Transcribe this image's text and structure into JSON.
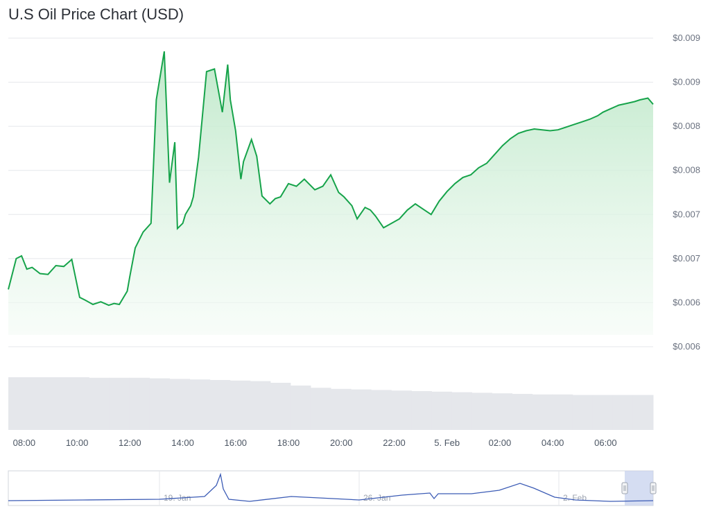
{
  "header": {
    "title": "U.S Oil Price Chart (USD)"
  },
  "colors": {
    "line": "#16a34a",
    "area_top": "#bde8c8",
    "area_bottom": "#f3fbf5",
    "volume": "#e5e7eb",
    "navigator": "#3b5bb5",
    "navigator_mask": "#c7d2ee",
    "grid": "#e5e7eb"
  },
  "chart_data": {
    "type": "area",
    "title": "U.S Oil Price Chart (USD)",
    "y_tick_labels": [
      "$0.009",
      "$0.009",
      "$0.008",
      "$0.008",
      "$0.007",
      "$0.007",
      "$0.006",
      "$0.006"
    ],
    "x_tick_labels": [
      "08:00",
      "10:00",
      "12:00",
      "14:00",
      "16:00",
      "18:00",
      "20:00",
      "22:00",
      "5. Feb",
      "02:00",
      "04:00",
      "06:00"
    ],
    "ylim": [
      0.006,
      0.0095
    ],
    "series": [
      {
        "x_hours": [
          7.4,
          7.7,
          7.9,
          8.1,
          8.3,
          8.6,
          8.9,
          9.2,
          9.5,
          9.8,
          10.1,
          10.3,
          10.6,
          10.9,
          11.2,
          11.4,
          11.6,
          11.9,
          12.0,
          12.2,
          12.5,
          12.8,
          13.0,
          13.3,
          13.5,
          13.7,
          13.8,
          14.0,
          14.1,
          14.2,
          14.3,
          14.4,
          14.6,
          14.9,
          15.2,
          15.5,
          15.7,
          15.8,
          16.0,
          16.2,
          16.3,
          16.6,
          16.8,
          17.0,
          17.3,
          17.5,
          17.7,
          18.0,
          18.3,
          18.6,
          19.0,
          19.3,
          19.6,
          19.9,
          20.1,
          20.4,
          20.6,
          20.9,
          21.1,
          21.3,
          21.6,
          21.9,
          22.2,
          22.5,
          22.8,
          23.1,
          23.4,
          23.7,
          24.0,
          24.3,
          24.6,
          24.9,
          25.2,
          25.5,
          25.8,
          26.1,
          26.4,
          26.7,
          27.0,
          27.3,
          27.6,
          27.9,
          28.2,
          28.5,
          28.8,
          29.1,
          29.4,
          29.7,
          29.9,
          30.2,
          30.5,
          30.8,
          31.1,
          31.3,
          31.6,
          31.8
        ],
        "values": [
          0.00665,
          0.007,
          0.00703,
          0.00688,
          0.0069,
          0.00683,
          0.00682,
          0.00692,
          0.00691,
          0.00699,
          0.00656,
          0.00653,
          0.00648,
          0.00651,
          0.00647,
          0.00649,
          0.00648,
          0.00663,
          0.0068,
          0.00712,
          0.0073,
          0.0074,
          0.0088,
          0.00935,
          0.00786,
          0.00832,
          0.00734,
          0.0074,
          0.0075,
          0.00755,
          0.0076,
          0.0077,
          0.00815,
          0.00912,
          0.00915,
          0.00866,
          0.0092,
          0.0088,
          0.00845,
          0.0079,
          0.0081,
          0.00835,
          0.00816,
          0.00771,
          0.00762,
          0.00768,
          0.0077,
          0.00785,
          0.00782,
          0.0079,
          0.00778,
          0.00782,
          0.00795,
          0.00775,
          0.0077,
          0.0076,
          0.00745,
          0.00758,
          0.00755,
          0.00748,
          0.00735,
          0.0074,
          0.00745,
          0.00755,
          0.00762,
          0.00756,
          0.0075,
          0.00765,
          0.00776,
          0.00785,
          0.00792,
          0.00795,
          0.00803,
          0.00808,
          0.00818,
          0.00828,
          0.00836,
          0.00842,
          0.00845,
          0.00847,
          0.00846,
          0.00845,
          0.00846,
          0.00849,
          0.00852,
          0.00855,
          0.00858,
          0.00862,
          0.00866,
          0.0087,
          0.00874,
          0.00876,
          0.00878,
          0.0088,
          0.00882,
          0.00875
        ]
      }
    ],
    "volume_series": [
      0.95,
      0.95,
      0.95,
      0.95,
      0.94,
      0.94,
      0.94,
      0.93,
      0.92,
      0.91,
      0.9,
      0.89,
      0.88,
      0.85,
      0.8,
      0.76,
      0.74,
      0.73,
      0.72,
      0.71,
      0.7,
      0.69,
      0.68,
      0.67,
      0.66,
      0.65,
      0.64,
      0.64,
      0.63,
      0.63,
      0.63,
      0.63
    ],
    "grid": true,
    "legend": "none"
  },
  "navigator": {
    "labels": [
      "19. Jan",
      "26. Jan",
      "2. Feb"
    ]
  }
}
